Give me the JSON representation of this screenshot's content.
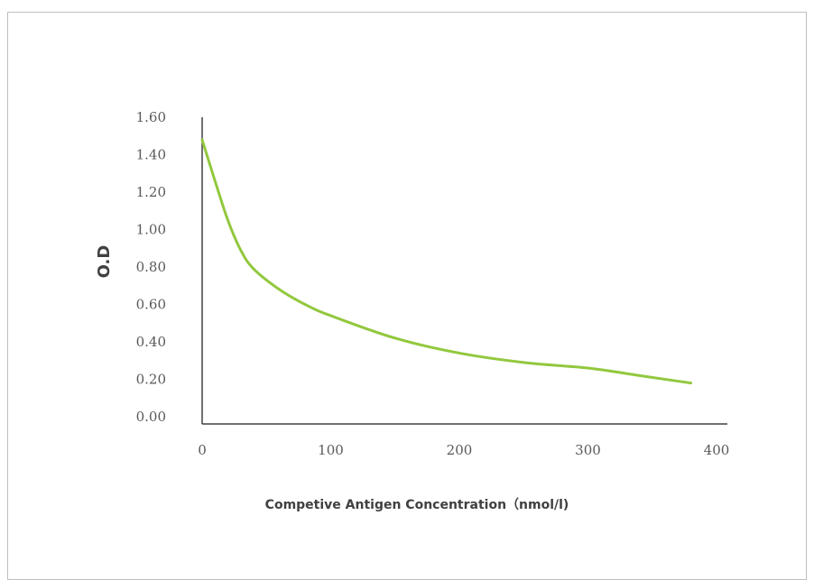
{
  "chart_data": {
    "type": "line",
    "title": "",
    "xlabel": "Competive Antigen Concentration（nmol/l)",
    "ylabel": "O.D",
    "xlim": [
      0,
      400
    ],
    "ylim": [
      0,
      1.6
    ],
    "x_ticks": [
      "0",
      "100",
      "200",
      "300",
      "400"
    ],
    "y_ticks": [
      "0.00",
      "0.20",
      "0.40",
      "0.60",
      "0.80",
      "1.00",
      "1.20",
      "1.40",
      "1.60"
    ],
    "grid": false,
    "legend": "none",
    "series": [
      {
        "color": "#92c83e",
        "x": [
          0,
          10,
          20,
          30,
          40,
          60,
          80,
          100,
          150,
          200,
          250,
          300,
          340,
          370,
          380
        ],
        "y": [
          1.48,
          1.26,
          1.05,
          0.89,
          0.79,
          0.68,
          0.6,
          0.54,
          0.42,
          0.34,
          0.29,
          0.26,
          0.22,
          0.19,
          0.18
        ]
      }
    ]
  }
}
